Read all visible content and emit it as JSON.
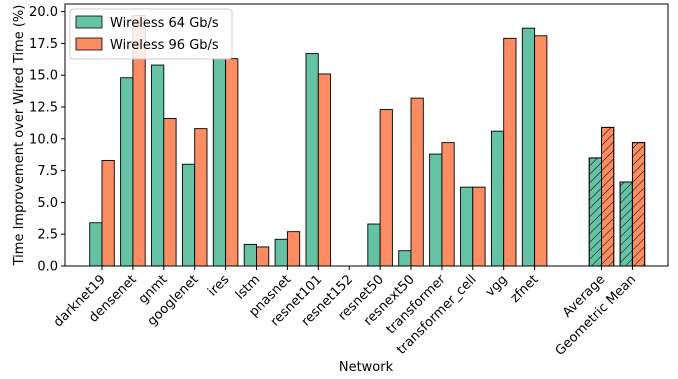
{
  "chart_data": {
    "type": "bar",
    "xlabel": "Network",
    "ylabel": "Time Improvement over Wired Time (%)",
    "ylim": [
      0,
      20.6
    ],
    "yticks": [
      "0.0",
      "2.5",
      "5.0",
      "7.5",
      "10.0",
      "12.5",
      "15.0",
      "17.5",
      "20.0"
    ],
    "legend_position": "top-left",
    "grid": false,
    "categories": [
      "darknet19",
      "densenet",
      "gnmt",
      "googlenet",
      "ires",
      "lstm",
      "pnasnet",
      "resnet101",
      "resnet152",
      "resnet50",
      "resnext50",
      "transformer",
      "transformer_cell",
      "vgg",
      "zfnet",
      "Average",
      "Geometric Mean"
    ],
    "summary_categories": [
      "Average",
      "Geometric Mean"
    ],
    "series": [
      {
        "name": "Wireless 64 Gb/s",
        "color": "#66c2a5",
        "values": [
          3.4,
          14.8,
          15.8,
          8.0,
          16.3,
          1.7,
          2.1,
          16.7,
          0.0,
          3.3,
          1.2,
          8.8,
          6.2,
          10.6,
          18.7,
          8.5,
          6.6
        ]
      },
      {
        "name": "Wireless 96 Gb/s",
        "color": "#fc8d62",
        "values": [
          8.3,
          19.7,
          11.6,
          10.8,
          16.3,
          1.5,
          2.7,
          15.1,
          0.0,
          12.3,
          13.2,
          9.7,
          6.2,
          17.9,
          18.1,
          10.9,
          9.7
        ]
      }
    ]
  }
}
